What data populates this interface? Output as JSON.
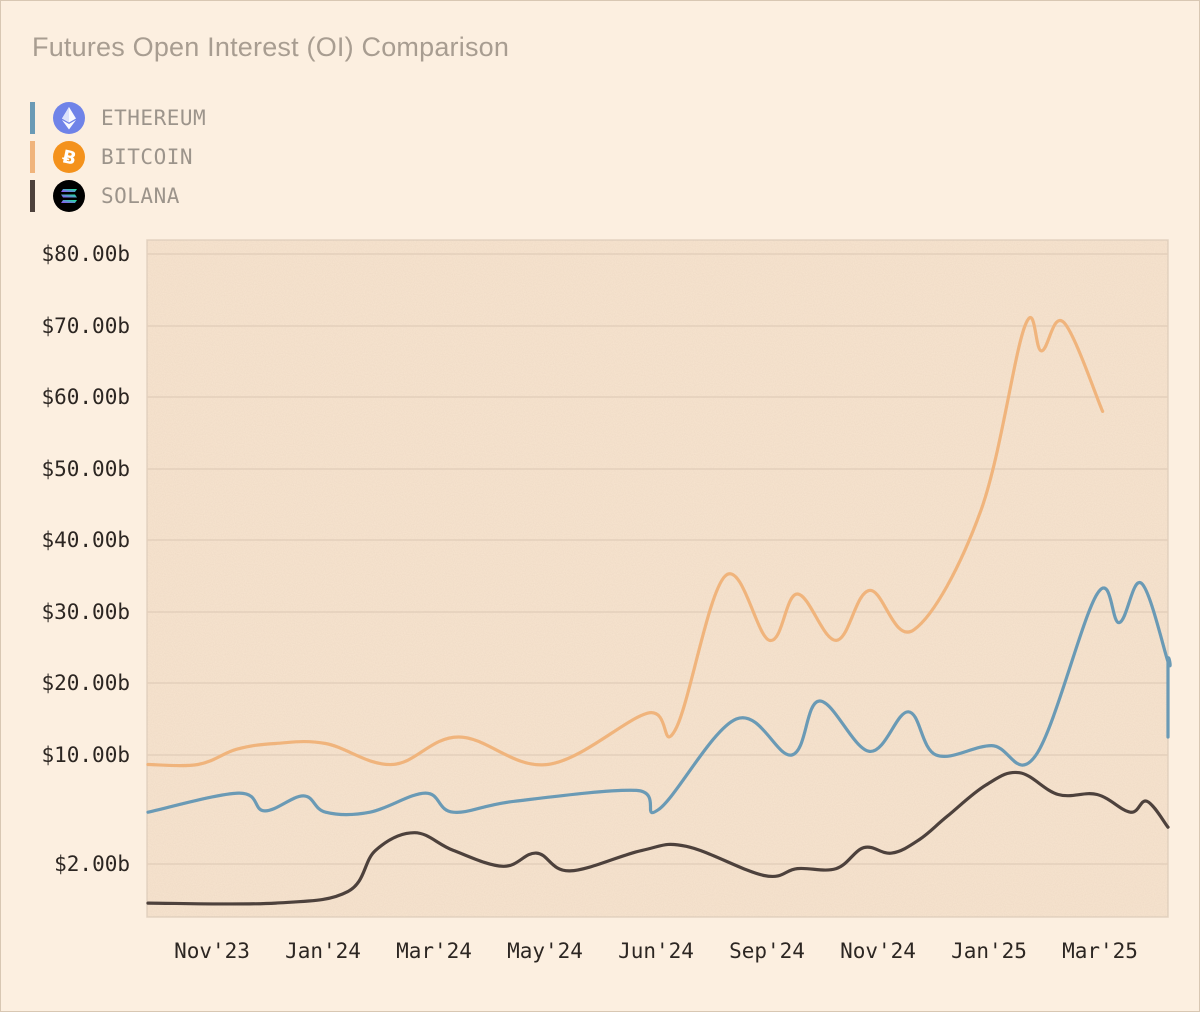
{
  "chart_data": {
    "type": "line",
    "title": "Futures Open Interest (OI) Comparison",
    "y_ticks": [
      "$80.00b",
      "$70.00b",
      "$60.00b",
      "$50.00b",
      "$40.00b",
      "$30.00b",
      "$20.00b",
      "$10.00b",
      "$2.00b"
    ],
    "x_ticks": [
      "Nov'23",
      "Jan'24",
      "Mar'24",
      "May'24",
      "Jun'24",
      "Sep'24",
      "Nov'24",
      "Jan'25",
      "Mar'25"
    ],
    "grid": true,
    "legend_placement": "top-left",
    "series": [
      {
        "name": "ETHEREUM",
        "color": "#6a9ab5",
        "icon": "ethereum-icon",
        "points": [
          [
            0.0,
            5.8
          ],
          [
            0.82,
            7.2
          ],
          [
            1.05,
            5.9
          ],
          [
            1.4,
            7.0
          ],
          [
            1.6,
            5.8
          ],
          [
            2.0,
            5.8
          ],
          [
            2.5,
            7.2
          ],
          [
            2.75,
            5.8
          ],
          [
            3.3,
            6.6
          ],
          [
            4.4,
            7.4
          ],
          [
            4.6,
            6.0
          ],
          [
            5.3,
            15.0
          ],
          [
            5.8,
            10.0
          ],
          [
            6.05,
            17.5
          ],
          [
            6.5,
            10.5
          ],
          [
            6.85,
            16.0
          ],
          [
            7.1,
            10.0
          ],
          [
            7.6,
            11.3
          ],
          [
            8.0,
            10.0
          ],
          [
            8.55,
            32.5
          ],
          [
            8.75,
            28.5
          ],
          [
            8.95,
            34.0
          ],
          [
            9.2,
            23.0
          ],
          [
            9.4,
            23.0
          ],
          [
            9.6,
            12.5
          ]
        ]
      },
      {
        "name": "BITCOIN",
        "color": "#f0b47c",
        "icon": "bitcoin-icon",
        "points": [
          [
            0.0,
            9.3
          ],
          [
            0.45,
            9.3
          ],
          [
            0.8,
            10.8
          ],
          [
            1.15,
            11.6
          ],
          [
            1.6,
            11.6
          ],
          [
            2.2,
            9.3
          ],
          [
            2.8,
            12.5
          ],
          [
            3.6,
            9.3
          ],
          [
            4.5,
            15.8
          ],
          [
            4.75,
            13.5
          ],
          [
            5.2,
            35.0
          ],
          [
            5.6,
            26.0
          ],
          [
            5.85,
            32.5
          ],
          [
            6.2,
            26.0
          ],
          [
            6.5,
            33.0
          ],
          [
            6.9,
            27.5
          ],
          [
            7.5,
            44.0
          ],
          [
            7.9,
            70.0
          ],
          [
            8.05,
            66.5
          ],
          [
            8.25,
            70.5
          ],
          [
            8.6,
            58.0
          ]
        ]
      },
      {
        "name": "SOLANA",
        "color": "#4d413c",
        "icon": "solana-icon",
        "points": [
          [
            0.0,
            0.3
          ],
          [
            1.15,
            0.3
          ],
          [
            1.8,
            0.8
          ],
          [
            2.05,
            3.0
          ],
          [
            2.4,
            4.3
          ],
          [
            2.75,
            3.0
          ],
          [
            3.2,
            1.9
          ],
          [
            3.5,
            2.8
          ],
          [
            3.8,
            1.7
          ],
          [
            4.45,
            3.0
          ],
          [
            4.85,
            3.3
          ],
          [
            5.55,
            1.5
          ],
          [
            5.85,
            1.8
          ],
          [
            6.2,
            1.8
          ],
          [
            6.45,
            3.2
          ],
          [
            6.7,
            2.8
          ],
          [
            6.95,
            3.8
          ],
          [
            7.2,
            5.5
          ],
          [
            7.55,
            7.8
          ],
          [
            7.85,
            8.7
          ],
          [
            8.2,
            7.1
          ],
          [
            8.55,
            7.1
          ],
          [
            8.85,
            5.8
          ],
          [
            9.0,
            6.6
          ],
          [
            9.2,
            4.7
          ]
        ]
      }
    ]
  }
}
